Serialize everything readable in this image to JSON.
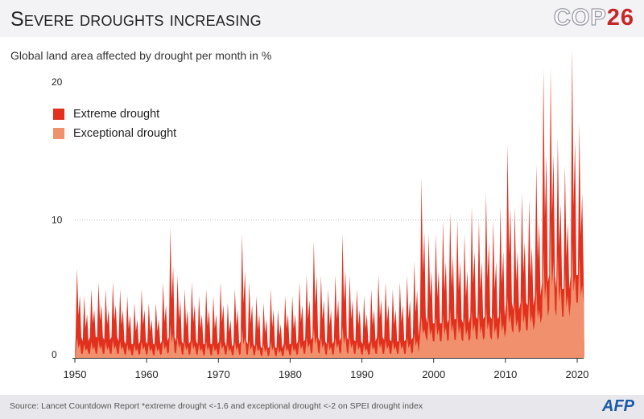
{
  "header": {
    "title": "Severe droughts increasing",
    "logo_text": "COP",
    "logo_number": "26"
  },
  "footer": {
    "source": "Source: Lancet Countdown Report  *extreme drought <-1.6 and exceptional drought <-2 on SPEI drought index",
    "agency": "AFP"
  },
  "chart_data": {
    "type": "area",
    "title": "",
    "subtitle": "Global land area affected by drought per month in %",
    "xlabel": "",
    "ylabel": "",
    "xlim": [
      1950,
      2021
    ],
    "ylim": [
      0,
      22
    ],
    "x_ticks": [
      1950,
      1960,
      1970,
      1980,
      1990,
      2000,
      2010,
      2020
    ],
    "y_ticks": [
      0,
      10,
      20
    ],
    "grid": "dotted line at 10",
    "legend_placement": "top-left",
    "colors": {
      "extreme": "#e2301f",
      "exceptional": "#f0906c"
    },
    "years": [
      1950,
      1951,
      1952,
      1953,
      1954,
      1955,
      1956,
      1957,
      1958,
      1959,
      1960,
      1961,
      1962,
      1963,
      1964,
      1965,
      1966,
      1967,
      1968,
      1969,
      1970,
      1971,
      1972,
      1973,
      1974,
      1975,
      1976,
      1977,
      1978,
      1979,
      1980,
      1981,
      1982,
      1983,
      1984,
      1985,
      1986,
      1987,
      1988,
      1989,
      1990,
      1991,
      1992,
      1993,
      1994,
      1995,
      1996,
      1997,
      1998,
      1999,
      2000,
      2001,
      2002,
      2003,
      2004,
      2005,
      2006,
      2007,
      2008,
      2009,
      2010,
      2011,
      2012,
      2013,
      2014,
      2015,
      2016,
      2017,
      2018,
      2019,
      2020,
      2021
    ],
    "series": [
      {
        "name": "Extreme drought",
        "annual_max": [
          6.5,
          4.5,
          5,
          5.5,
          5,
          5.5,
          5,
          4.5,
          4,
          5,
          4,
          4,
          5.5,
          9.5,
          6,
          5,
          5.5,
          4.5,
          5,
          4.5,
          5.5,
          4,
          5,
          9,
          5.5,
          4.5,
          4,
          5,
          3.5,
          4.5,
          4.5,
          5.5,
          6,
          8.5,
          6,
          5,
          6,
          9,
          6,
          5,
          4.5,
          5,
          6,
          5.5,
          5,
          5.5,
          6,
          7,
          13,
          9,
          9,
          10,
          10.5,
          10,
          9,
          11,
          10,
          12,
          10,
          11,
          15.5,
          11,
          12,
          11.5,
          14,
          21,
          21,
          16,
          14,
          22.5,
          17,
          19
        ],
        "annual_min": [
          1.5,
          1.2,
          1.5,
          1.5,
          1.3,
          1.5,
          1.2,
          1,
          1,
          1.2,
          1,
          1,
          1.2,
          1.5,
          1.2,
          1,
          1.2,
          1,
          1,
          1,
          1.2,
          0.8,
          1,
          1.2,
          1,
          0.8,
          0.7,
          0.8,
          0.7,
          1,
          1,
          1.2,
          1.3,
          1.5,
          1.2,
          1,
          1.2,
          1.5,
          1.3,
          1.2,
          1,
          1.2,
          1.5,
          1.3,
          1.2,
          1.2,
          1.3,
          1.5,
          3,
          2.5,
          2.5,
          2.5,
          2.8,
          2.8,
          2.5,
          3,
          2.8,
          3,
          2.8,
          3,
          4,
          3.5,
          4,
          3.8,
          4.5,
          5.5,
          6,
          5,
          5,
          6,
          6,
          7
        ]
      },
      {
        "name": "Exceptional drought",
        "annual_max": [
          1.5,
          1,
          1.2,
          1.3,
          1.2,
          1.3,
          1.2,
          1,
          1,
          1.2,
          1,
          1,
          1.3,
          2.5,
          1.5,
          1.2,
          1.3,
          1,
          1.2,
          1,
          1.3,
          1,
          1.2,
          2.2,
          1.3,
          1,
          1,
          1.2,
          0.8,
          1,
          1,
          1.3,
          1.5,
          2.2,
          1.5,
          1.2,
          1.5,
          2.3,
          1.5,
          1.2,
          1,
          1.2,
          1.5,
          1.3,
          1.2,
          1.3,
          1.5,
          1.8,
          3,
          3,
          3,
          3.2,
          3.5,
          3.3,
          3,
          3.5,
          3.3,
          3.8,
          3.3,
          3.5,
          4.5,
          4,
          4.5,
          4.5,
          5,
          8,
          10,
          7.5,
          6.5,
          8.5,
          7.5,
          6.5
        ],
        "annual_min": [
          0.3,
          0.3,
          0.3,
          0.3,
          0.3,
          0.3,
          0.3,
          0.2,
          0.2,
          0.3,
          0.2,
          0.2,
          0.3,
          0.4,
          0.3,
          0.2,
          0.3,
          0.2,
          0.2,
          0.2,
          0.3,
          0.2,
          0.2,
          0.3,
          0.2,
          0.2,
          0.1,
          0.2,
          0.1,
          0.2,
          0.2,
          0.3,
          0.3,
          0.4,
          0.3,
          0.2,
          0.3,
          0.4,
          0.3,
          0.3,
          0.2,
          0.3,
          0.3,
          0.3,
          0.3,
          0.3,
          0.3,
          0.4,
          1.5,
          1.2,
          1.2,
          1.2,
          1.3,
          1.3,
          1.2,
          1.4,
          1.3,
          1.5,
          1.3,
          1.5,
          2,
          1.8,
          2,
          2,
          2.5,
          3,
          3.5,
          3,
          3,
          4,
          4,
          5
        ]
      }
    ]
  }
}
